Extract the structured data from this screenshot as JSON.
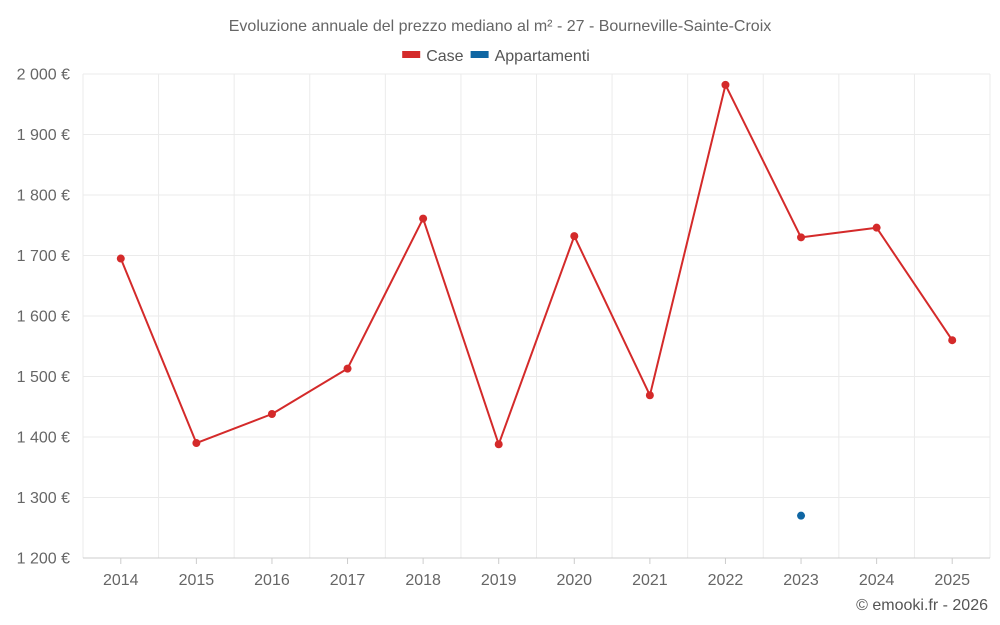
{
  "chart_data": {
    "type": "line",
    "title": "Evoluzione annuale del prezzo mediano al m² - 27 - Bourneville-Sainte-Croix",
    "categories": [
      "2014",
      "2015",
      "2016",
      "2017",
      "2018",
      "2019",
      "2020",
      "2021",
      "2022",
      "2023",
      "2024",
      "2025"
    ],
    "series": [
      {
        "name": "Case",
        "color": "#d42a2a",
        "values": [
          1695,
          1390,
          1438,
          1513,
          1761,
          1388,
          1732,
          1469,
          1982,
          1730,
          1746,
          1560
        ]
      },
      {
        "name": "Appartamenti",
        "color": "#0f66a3",
        "values": [
          null,
          null,
          null,
          null,
          null,
          null,
          null,
          null,
          null,
          1270,
          null,
          null
        ]
      }
    ],
    "ylim": [
      1200,
      2000
    ],
    "yticks": [
      1200,
      1300,
      1400,
      1500,
      1600,
      1700,
      1800,
      1900,
      2000
    ],
    "ytick_labels": [
      "1 200 €",
      "1 300 €",
      "1 400 €",
      "1 500 €",
      "1 600 €",
      "1 700 €",
      "1 800 €",
      "1 900 €",
      "2 000 €"
    ],
    "grid": true,
    "legend_position": "top-center"
  },
  "credit": "© emooki.fr - 2026"
}
